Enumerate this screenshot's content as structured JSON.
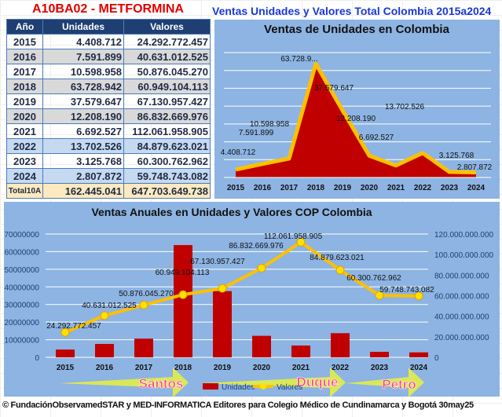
{
  "header": {
    "drug": "A10BA02 - METFORMINA",
    "title": "Ventas Unidades y Valores Total Colombia 2015a2024"
  },
  "table": {
    "columns": [
      "Año",
      "Unidades",
      "Valores"
    ],
    "rows": [
      {
        "year": "2015",
        "units": "4.408.712",
        "values": "24.292.772.457"
      },
      {
        "year": "2016",
        "units": "7.591.899",
        "values": "40.631.012.525"
      },
      {
        "year": "2017",
        "units": "10.598.958",
        "values": "50.876.045.270"
      },
      {
        "year": "2018",
        "units": "63.728.942",
        "values": "60.949.104.113"
      },
      {
        "year": "2019",
        "units": "37.579.647",
        "values": "67.130.957.427"
      },
      {
        "year": "2020",
        "units": "12.208.190",
        "values": "86.832.669.976"
      },
      {
        "year": "2021",
        "units": "6.692.527",
        "values": "112.061.958.905"
      },
      {
        "year": "2022",
        "units": "13.702.526",
        "values": "84.879.623.021"
      },
      {
        "year": "2023",
        "units": "3.125.768",
        "values": "60.300.762.962"
      },
      {
        "year": "2024",
        "units": "2.807.872",
        "values": "59.748.743.082"
      }
    ],
    "total": {
      "year": "Total10A",
      "units": "162.445.041",
      "values": "647.703.649.738"
    }
  },
  "chart_data": [
    {
      "type": "area",
      "title": "Ventas de Unidades en Colombia",
      "categories": [
        "2015",
        "2016",
        "2017",
        "2018",
        "2019",
        "2020",
        "2021",
        "2022",
        "2023",
        "2024"
      ],
      "values": [
        4408712,
        7591899,
        10598958,
        63728942,
        37579647,
        12208190,
        6692527,
        13702526,
        3125768,
        2807872
      ],
      "labels": [
        "4.408.712",
        "7.591.899",
        "10.598.958",
        "63.728.9...",
        "37.579.647",
        "12.208.190",
        "6.692.527",
        "13.702.526",
        "3.125.768",
        "2.807.872"
      ],
      "ylim": [
        0,
        70000000
      ],
      "grid": true,
      "colors": {
        "fill": "#c00000",
        "line": "#ffc000",
        "bg": "#8db4e2"
      }
    },
    {
      "type": "bar+line",
      "title": "Ventas Anuales en Unidades y Valores COP Colombia",
      "categories": [
        "2015",
        "2016",
        "2017",
        "2018",
        "2019",
        "2020",
        "2021",
        "2022",
        "2023",
        "2024"
      ],
      "series": [
        {
          "name": "Unidades",
          "type": "bar",
          "axis": "left",
          "values": [
            4408712,
            7591899,
            10598958,
            63728942,
            37579647,
            12208190,
            6692527,
            13702526,
            3125768,
            2807872
          ],
          "color": "#c00000"
        },
        {
          "name": "Valores",
          "type": "line",
          "axis": "right",
          "values": [
            24292772457,
            40631012525,
            50876045270,
            60949104113,
            67130957427,
            86832669976,
            112061958905,
            84879623021,
            60300762962,
            59748743082
          ],
          "labels": [
            "24.292.772.457",
            "40.631.012.525",
            "50.876.045.270",
            "60.949.104.113",
            "67.130.957.427",
            "86.832.669.976",
            "112.061.958.905",
            "84.879.623.021",
            "60.300.762.962",
            "59.748.743.082"
          ],
          "color": "#ffc000"
        }
      ],
      "left_ticks": [
        "0",
        "10000000",
        "20000000",
        "30000000",
        "40000000",
        "50000000",
        "60000000",
        "70000000"
      ],
      "right_ticks": [
        "0",
        "20.000.000.000",
        "40.000.000.000",
        "60.000.000.000",
        "80.000.000.000",
        "100.000.000.000",
        "120.000.000.000"
      ],
      "ylim_left": [
        0,
        70000000
      ],
      "ylim_right": [
        0,
        120000000000
      ],
      "grid": true,
      "legend": "bottom",
      "annotations": [
        "Santos",
        "Duque",
        "Petro"
      ]
    }
  ],
  "footer": "© FundaciónObservamedSTAR y MED-INFORMATICA Editores para Colegio Médico de Cundinamarca y Bogotá 30may25"
}
